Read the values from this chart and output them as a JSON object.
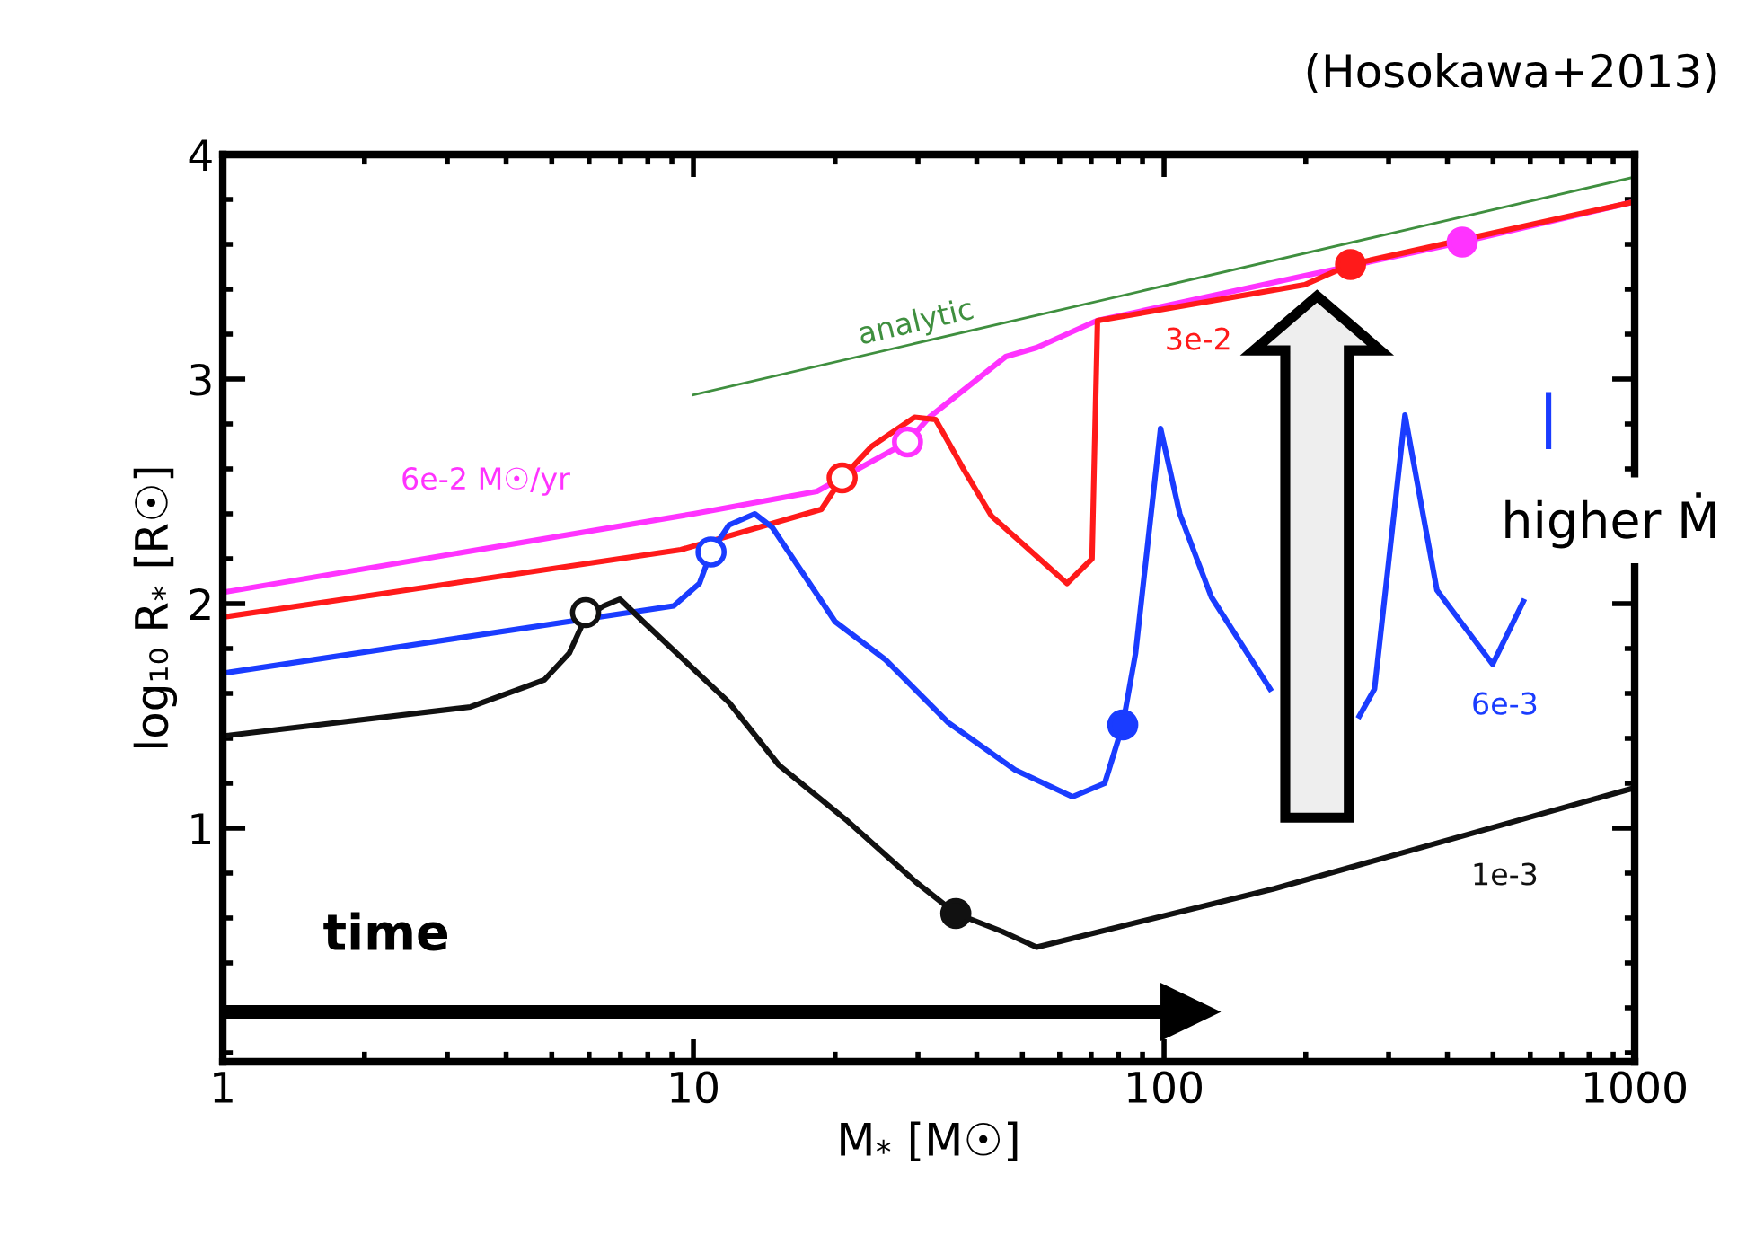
{
  "chart_data": {
    "type": "line",
    "xlabel": "M$_{*}$ [M☉]",
    "ylabel": "log₁₀ R$_{*}$ [R☉]",
    "log": "x",
    "xlim": [
      1,
      1000
    ],
    "xticks": [
      1,
      10,
      100,
      1000
    ],
    "ylim": [
      -0.04,
      4
    ],
    "yticks": [
      1,
      2,
      3,
      4
    ],
    "grid": false,
    "legend": false,
    "series": [
      {
        "name": "analytic",
        "color": "#3f8f3f",
        "x": [
          10,
          1000
        ],
        "values": [
          2.93,
          3.9
        ]
      },
      {
        "name": "6e-2 M☉/yr",
        "color": "#ff33ff",
        "x": [
          1,
          10,
          18.3,
          28.5,
          31.7,
          46.1,
          53.6,
          72,
          199,
          430,
          1000
        ],
        "values": [
          2.05,
          2.4,
          2.5,
          2.72,
          2.83,
          3.1,
          3.14,
          3.26,
          3.46,
          3.61,
          3.79
        ]
      },
      {
        "name": "3e-2",
        "color": "#ff1a1a",
        "x": [
          1,
          9.4,
          18.7,
          20.7,
          23.9,
          29.5,
          32.7,
          37.7,
          43,
          62.2,
          70.3,
          72.2,
          199,
          249,
          1000
        ],
        "values": [
          1.94,
          2.24,
          2.42,
          2.56,
          2.7,
          2.83,
          2.82,
          2.59,
          2.39,
          2.09,
          2.2,
          3.26,
          3.42,
          3.51,
          3.79
        ]
      },
      {
        "name": "6e-3",
        "color": "#1a3cff",
        "x": [
          1,
          9.08,
          10.3,
          10.9,
          11.9,
          13.5,
          14.7,
          20,
          25.6,
          34.8,
          48.2,
          63.9,
          74.8,
          81.7,
          87,
          98.3,
          108,
          126,
          168,
          193,
          239,
          260,
          280,
          325,
          345,
          380,
          499,
          580,
          620,
          656,
          656
        ],
        "values": [
          1.69,
          1.99,
          2.09,
          2.23,
          2.35,
          2.4,
          2.34,
          1.92,
          1.75,
          1.47,
          1.26,
          1.14,
          1.2,
          1.46,
          1.78,
          2.78,
          2.4,
          2.03,
          1.62,
          null,
          null,
          1.5,
          1.62,
          2.84,
          2.54,
          2.06,
          1.73,
          2.01,
          null,
          2.7,
          2.93
        ]
      },
      {
        "name": "1e-3",
        "color": "#111111",
        "x": [
          1,
          3.36,
          4.82,
          5.45,
          5.9,
          6.45,
          6.98,
          7.82,
          11.9,
          15.2,
          21.3,
          29.7,
          36.1,
          45.3,
          53.6,
          171,
          1000
        ],
        "values": [
          1.41,
          1.54,
          1.66,
          1.78,
          1.94,
          1.99,
          2.02,
          1.92,
          1.56,
          1.28,
          1.03,
          0.76,
          0.62,
          0.54,
          0.47,
          0.73,
          1.18
        ]
      },
      {
        "type": "scatter",
        "marker": "circle",
        "x": [
          5.9,
          10.9,
          20.7,
          28.5
        ],
        "values": [
          1.96,
          2.23,
          2.56,
          2.72
        ],
        "colors": [
          "#111111",
          "#1a3cff",
          "#ff1a1a",
          "#ff33ff"
        ]
      },
      {
        "type": "scatter",
        "marker": "circle",
        "x": [
          36.1,
          81.7,
          249,
          430
        ],
        "values": [
          0.62,
          1.46,
          3.51,
          3.61
        ],
        "colors": [
          "#111111",
          "#1a3cff",
          "#ff1a1a",
          "#ff33ff"
        ]
      }
    ],
    "annotations": [
      "(Hosokawa+2013)",
      "time",
      "higher Ṁ"
    ]
  }
}
